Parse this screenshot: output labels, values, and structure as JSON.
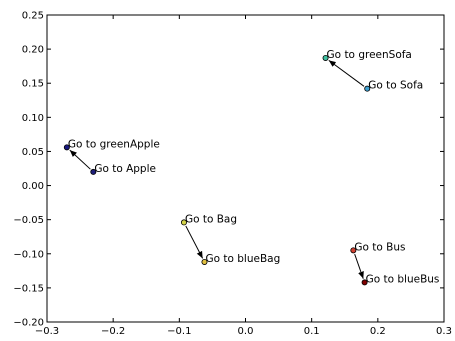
{
  "chart_data": {
    "type": "scatter",
    "title": "",
    "xlabel": "",
    "ylabel": "",
    "xlim": [
      -0.3,
      0.3
    ],
    "ylim": [
      -0.2,
      0.25
    ],
    "xticks": [
      "−0.3",
      "−0.2",
      "−0.1",
      "0.0",
      "0.1",
      "0.2",
      "0.3"
    ],
    "yticks": [
      "−0.20",
      "−0.15",
      "−0.10",
      "−0.05",
      "0.00",
      "0.05",
      "0.10",
      "0.15",
      "0.20",
      "0.25"
    ],
    "grid": false,
    "legend": "none",
    "points": [
      {
        "label": "Go to Apple",
        "x": -0.23,
        "y": 0.02,
        "color": "#1f1f7a"
      },
      {
        "label": "Go to greenApple",
        "x": -0.27,
        "y": 0.056,
        "color": "#1a1a80"
      },
      {
        "label": "Go to Bag",
        "x": -0.093,
        "y": -0.054,
        "color": "#d4d44a"
      },
      {
        "label": "Go to blueBag",
        "x": -0.062,
        "y": -0.112,
        "color": "#e0c040"
      },
      {
        "label": "Go to Sofa",
        "x": 0.184,
        "y": 0.142,
        "color": "#40a0d0"
      },
      {
        "label": "Go to greenSofa",
        "x": 0.121,
        "y": 0.187,
        "color": "#40c0a0"
      },
      {
        "label": "Go to Bus",
        "x": 0.163,
        "y": -0.095,
        "color": "#d04030"
      },
      {
        "label": "Go to blueBus",
        "x": 0.18,
        "y": -0.142,
        "color": "#800000"
      }
    ],
    "arrows": [
      {
        "from": 0,
        "to": 1
      },
      {
        "from": 2,
        "to": 3
      },
      {
        "from": 4,
        "to": 5
      },
      {
        "from": 6,
        "to": 7
      }
    ]
  }
}
